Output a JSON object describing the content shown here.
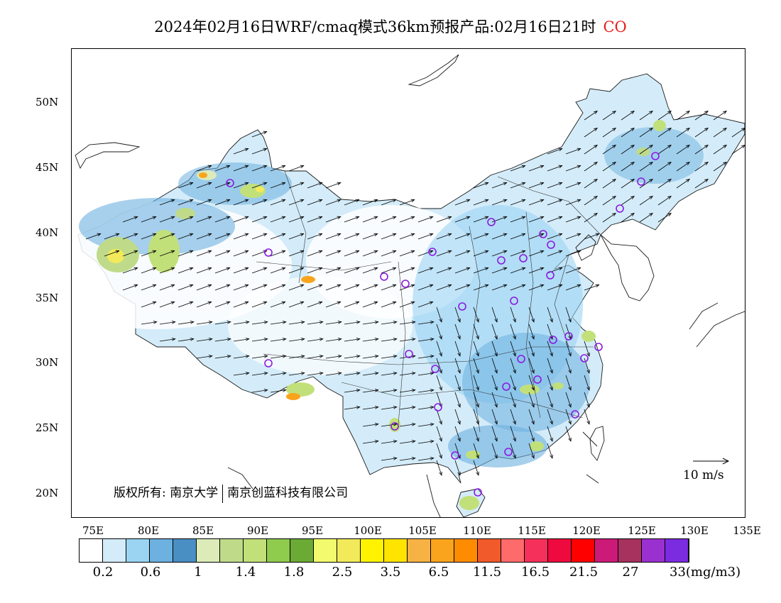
{
  "title": {
    "text": "2024年02月16日WRF/cmaq模式36km预报产品:02月16日21时",
    "species": "CO",
    "species_color": "#e8201c"
  },
  "axes": {
    "lat_labels": [
      "50N",
      "45N",
      "40N",
      "35N",
      "30N",
      "25N",
      "20N"
    ],
    "lon_labels": [
      "75E",
      "80E",
      "85E",
      "90E",
      "95E",
      "100E",
      "105E",
      "110E",
      "115E",
      "120E",
      "125E",
      "130E",
      "135E"
    ]
  },
  "copyright": {
    "prefix": "版权所有: 南京大学",
    "company": "南京创蓝科技有限公司"
  },
  "wind_reference": {
    "label": "10 m/s",
    "speed": 10
  },
  "colorbar": {
    "colors": [
      "#ffffff",
      "#d4ecf9",
      "#9bd4f3",
      "#6cb1e0",
      "#4a8fc4",
      "#dcebb8",
      "#bfdb8a",
      "#c2e07a",
      "#8fcb4d",
      "#6aaa35",
      "#f2fb6e",
      "#f2ea5b",
      "#fff300",
      "#ffe400",
      "#f7b245",
      "#f9a41c",
      "#ff8c00",
      "#f15a2b",
      "#ff6b6b",
      "#f5305a",
      "#ee0a3e",
      "#ff0000",
      "#cc1a78",
      "#a8325e",
      "#9b30d0",
      "#7b2be0"
    ],
    "labels": [
      "0.2",
      "0.6",
      "1",
      "1.4",
      "1.8",
      "2.5",
      "3.5",
      "6.5",
      "11.5",
      "16.5",
      "21.5",
      "27",
      "33"
    ],
    "unit": "(mg/m3)"
  },
  "stations_marker_color": "#8a1ae0"
}
